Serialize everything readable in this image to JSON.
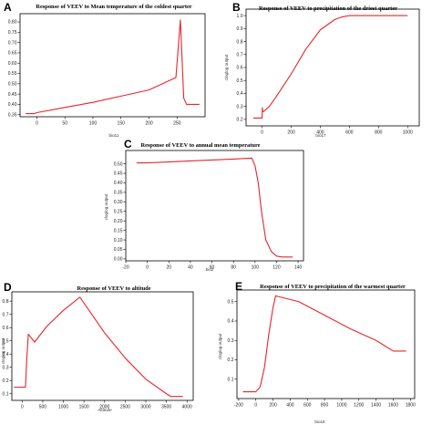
{
  "colors": {
    "curve": "#e8252b",
    "frame": "#000000",
    "background": "#ffffff"
  },
  "chart_data": [
    {
      "letter": "A",
      "type": "line",
      "title": "Response of VEEV to Mean temperature of the coldest quarter",
      "xlabel": "bio11",
      "ylabel": "",
      "xlim": [
        -30,
        300
      ],
      "ylim": [
        0.34,
        0.84
      ],
      "xticks": [
        0,
        50,
        100,
        150,
        200,
        250
      ],
      "yticks": [
        0.35,
        0.4,
        0.45,
        0.5,
        0.55,
        0.6,
        0.65,
        0.7,
        0.75,
        0.8
      ],
      "ytick_labels": [
        "0.35",
        "0.40",
        "0.45",
        "0.50",
        "0.55",
        "0.60",
        "0.65",
        "0.70",
        "0.75",
        "0.80"
      ],
      "grid": false,
      "series": [
        {
          "x": [
            -20,
            -5,
            0,
            50,
            100,
            150,
            200,
            248,
            256,
            262,
            267,
            290
          ],
          "y": [
            0.355,
            0.355,
            0.36,
            0.385,
            0.41,
            0.44,
            0.47,
            0.53,
            0.81,
            0.43,
            0.4,
            0.4
          ]
        }
      ]
    },
    {
      "letter": "B",
      "type": "line",
      "title": "Response of VEEV to precipitation of the driest quarter",
      "xlabel": "bio17",
      "ylabel": "cloglog output",
      "xlim": [
        -110,
        1080
      ],
      "ylim": [
        0.15,
        1.05
      ],
      "xticks": [
        0,
        200,
        400,
        600,
        800,
        1000
      ],
      "yticks": [
        0.2,
        0.3,
        0.4,
        0.5,
        0.6,
        0.7,
        0.8,
        0.9,
        1.0
      ],
      "ytick_labels": [
        "0.2",
        "0.3",
        "0.4",
        "0.5",
        "0.6",
        "0.7",
        "0.8",
        "0.9",
        "1.0"
      ],
      "grid": false,
      "series": [
        {
          "x": [
            -60,
            0,
            2,
            5,
            10,
            50,
            100,
            200,
            300,
            400,
            500,
            550,
            600,
            1000
          ],
          "y": [
            0.21,
            0.21,
            0.29,
            0.26,
            0.26,
            0.3,
            0.38,
            0.55,
            0.74,
            0.89,
            0.97,
            0.99,
            1.0,
            1.0
          ]
        }
      ]
    },
    {
      "letter": "C",
      "type": "line",
      "title": "Response of VEEV to annual mean temperature",
      "xlabel": "bio2",
      "ylabel": "cloglog output",
      "xlim": [
        -20,
        145
      ],
      "ylim": [
        -0.01,
        0.57
      ],
      "xticks": [
        -20,
        0,
        20,
        40,
        60,
        80,
        100,
        120,
        140
      ],
      "yticks": [
        0,
        0.05,
        0.1,
        0.15,
        0.2,
        0.25,
        0.3,
        0.35,
        0.4,
        0.45,
        0.5
      ],
      "ytick_labels": [
        "0.00",
        "0.05",
        "0.10",
        "0.15",
        "0.20",
        "0.25",
        "0.30",
        "0.35",
        "0.40",
        "0.45",
        "0.50"
      ],
      "grid": false,
      "series": [
        {
          "x": [
            -10,
            0,
            20,
            40,
            60,
            80,
            97,
            100,
            103,
            106,
            110,
            115,
            120,
            125,
            135
          ],
          "y": [
            0.505,
            0.505,
            0.51,
            0.515,
            0.52,
            0.525,
            0.53,
            0.49,
            0.4,
            0.25,
            0.1,
            0.04,
            0.015,
            0.01,
            0.01
          ]
        }
      ]
    },
    {
      "letter": "D",
      "type": "line",
      "title": "Response of VEEV to altitude",
      "xlabel": "Altitude",
      "ylabel": "cloglog output",
      "xlim": [
        -250,
        4150
      ],
      "ylim": [
        0.05,
        0.87
      ],
      "xticks": [
        0,
        500,
        1000,
        1500,
        2000,
        2500,
        3000,
        3500,
        4000
      ],
      "yticks": [
        0.1,
        0.2,
        0.3,
        0.4,
        0.5,
        0.6,
        0.7,
        0.8
      ],
      "ytick_labels": [
        "0.1",
        "0.2",
        "0.3",
        "0.4",
        "0.5",
        "0.6",
        "0.7",
        "0.8"
      ],
      "grid": false,
      "series": [
        {
          "x": [
            -200,
            80,
            110,
            150,
            300,
            600,
            1000,
            1400,
            2000,
            2500,
            3000,
            3500,
            3600,
            3900
          ],
          "y": [
            0.15,
            0.15,
            0.35,
            0.55,
            0.49,
            0.61,
            0.73,
            0.83,
            0.56,
            0.37,
            0.21,
            0.1,
            0.08,
            0.08
          ]
        }
      ]
    },
    {
      "letter": "E",
      "type": "line",
      "title": "Response of VEEV to precipitation of the warmest quarter",
      "xlabel": "bio18",
      "ylabel": "cloglog output",
      "xlim": [
        -220,
        1850
      ],
      "ylim": [
        0.0,
        0.56
      ],
      "xticks": [
        -200,
        0,
        200,
        400,
        600,
        800,
        1000,
        1200,
        1400,
        1600,
        1800
      ],
      "yticks": [
        0.1,
        0.2,
        0.3,
        0.4,
        0.5
      ],
      "ytick_labels": [
        "0.1",
        "0.2",
        "0.3",
        "0.4",
        "0.5"
      ],
      "grid": false,
      "series": [
        {
          "x": [
            -150,
            0,
            50,
            100,
            150,
            200,
            230,
            500,
            800,
            1100,
            1400,
            1600,
            1750
          ],
          "y": [
            0.035,
            0.035,
            0.06,
            0.16,
            0.33,
            0.47,
            0.53,
            0.5,
            0.43,
            0.36,
            0.3,
            0.245,
            0.245
          ]
        }
      ]
    }
  ]
}
